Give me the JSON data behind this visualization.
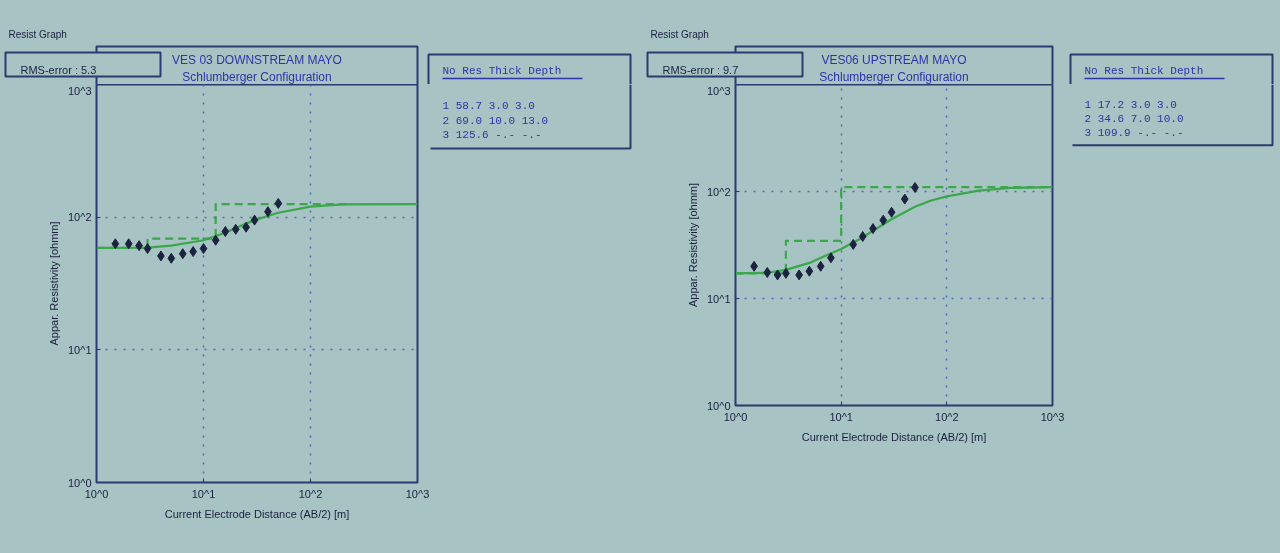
{
  "chart_data": [
    {
      "type": "scatter",
      "title": "VES 03 DOWNSTREAM MAYO",
      "subtitle": "Schlumberger Configuration",
      "xlabel": "Current Electrode Distance (AB/2) [m]",
      "ylabel": "Appar. Resistivity [ohmm]",
      "log": "xy",
      "xlim": [
        1,
        1000
      ],
      "ylim": [
        1,
        1000
      ],
      "xticks": [
        {
          "value": 1,
          "label": "10^0"
        },
        {
          "value": 10,
          "label": "10^1"
        },
        {
          "value": 100,
          "label": "10^2"
        },
        {
          "value": 1000,
          "label": "10^3"
        }
      ],
      "yticks": [
        {
          "value": 1,
          "label": "10^0"
        },
        {
          "value": 10,
          "label": "10^1"
        },
        {
          "value": 100,
          "label": "10^2"
        },
        {
          "value": 1000,
          "label": "10^3"
        }
      ],
      "grid": true,
      "annotations": [
        "Resist Graph",
        "RMS-error :  5.3",
        "No   Res   Thick  Depth",
        "1   58.7    3.0    3.0",
        "2   69.0   10.0   13.0",
        "3  125.6    -.-    -.-"
      ],
      "series": [
        {
          "type": "scatter",
          "marker": "diamond",
          "color": "#1c2340",
          "x": [
            1.5,
            2,
            2.5,
            3,
            4,
            5,
            6.4,
            8,
            10,
            13,
            16,
            20,
            25,
            30,
            40,
            50
          ],
          "values": [
            63,
            63,
            61,
            58,
            51,
            49,
            53,
            55,
            58,
            67,
            78,
            81,
            84,
            95,
            110,
            127
          ]
        },
        {
          "type": "line",
          "color": "#3aa84a",
          "x": [
            1,
            3,
            5,
            10,
            15,
            20,
            30,
            50,
            100,
            200,
            1000
          ],
          "values": [
            58.7,
            59,
            61,
            67,
            75,
            83,
            95,
            108,
            120,
            125,
            125.6
          ]
        },
        {
          "type": "line",
          "color": "#3aa84a",
          "line_style": "dashed",
          "x": [
            1,
            3,
            3,
            13,
            13,
            220
          ],
          "values": [
            58.7,
            58.7,
            69,
            69,
            125.6,
            125.6
          ]
        }
      ]
    },
    {
      "type": "scatter",
      "title": "VES06 UPSTREAM MAYO",
      "subtitle": "Schlumberger Configuration",
      "xlabel": "Current Electrode Distance (AB/2) [m]",
      "ylabel": "Appar. Resistivity [ohmm]",
      "log": "xy",
      "xlim": [
        1,
        1000
      ],
      "ylim": [
        1,
        1000
      ],
      "xticks": [
        {
          "value": 1,
          "label": "10^0"
        },
        {
          "value": 10,
          "label": "10^1"
        },
        {
          "value": 100,
          "label": "10^2"
        },
        {
          "value": 1000,
          "label": "10^3"
        }
      ],
      "yticks": [
        {
          "value": 1,
          "label": "10^0"
        },
        {
          "value": 10,
          "label": "10^1"
        },
        {
          "value": 100,
          "label": "10^2"
        },
        {
          "value": 1000,
          "label": "10^3"
        }
      ],
      "grid": true,
      "annotations": [
        "Resist Graph",
        "RMS-error :  9.7",
        "No   Res   Thick  Depth",
        "1   17.2    3.0    3.0",
        "2   34.6    7.0   10.0",
        "3  109.9    -.-    -.-"
      ],
      "series": [
        {
          "type": "scatter",
          "marker": "diamond",
          "color": "#1c2340",
          "x": [
            1.5,
            2,
            2.5,
            3,
            4,
            5,
            6.4,
            8,
            13,
            16,
            20,
            25,
            30,
            40,
            50
          ],
          "values": [
            20,
            17.5,
            16.6,
            17.2,
            16.6,
            18,
            20,
            24,
            32,
            38,
            45,
            54,
            64,
            85,
            109
          ]
        },
        {
          "type": "line",
          "color": "#3aa84a",
          "x": [
            1,
            2,
            3,
            5,
            7,
            10,
            15,
            20,
            30,
            50,
            70,
            100,
            200,
            400,
            1000
          ],
          "values": [
            17.2,
            17.4,
            18.5,
            21.5,
            25,
            29,
            36,
            43,
            55,
            72,
            82,
            90,
            102,
            108,
            109.9
          ]
        },
        {
          "type": "line",
          "color": "#3aa84a",
          "line_style": "dashed",
          "x": [
            1,
            3,
            3,
            10,
            10,
            1000
          ],
          "values": [
            17.2,
            17.2,
            34.6,
            34.6,
            109.9,
            109.9
          ]
        }
      ]
    }
  ]
}
